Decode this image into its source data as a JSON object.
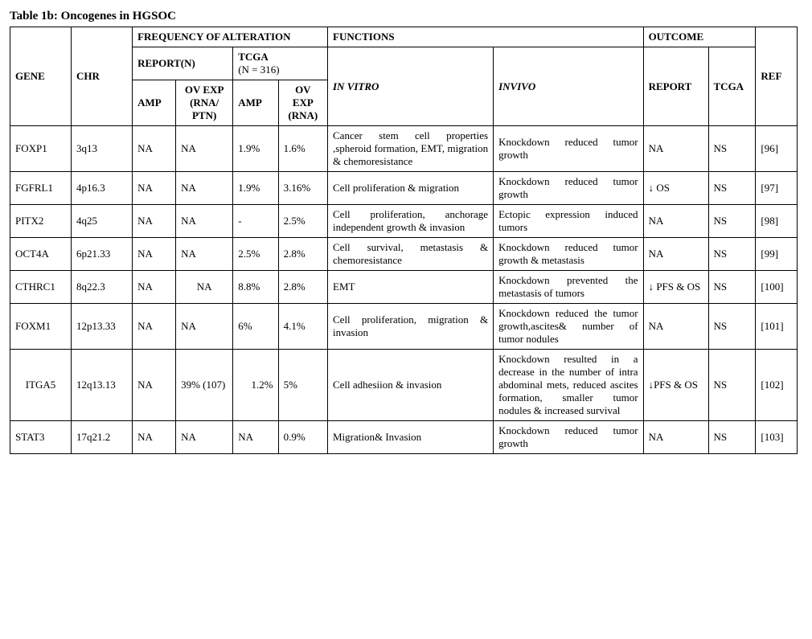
{
  "title": "Table 1b: Oncogenes in HGSOC",
  "hdr": {
    "gene": "GENE",
    "chr": "CHR",
    "freq": "FREQUENCY OF ALTERATION",
    "func": "FUNCTIONS",
    "outcome": "OUTCOME",
    "ref": "REF",
    "report": "REPORT(N)",
    "tcga": "TCGA",
    "tcga_n": "(N = 316)",
    "amp": "AMP",
    "ovexp_rna_ptn": "OV EXP (RNA/ PTN)",
    "ovexp_rna": "OV EXP (RNA)",
    "invitro": "IN VITRO",
    "invivo": "INVIVO",
    "o_report": "REPORT",
    "o_tcga": "TCGA"
  },
  "rows": [
    {
      "gene": "FOXP1",
      "chr": "3q13",
      "r_amp": "NA",
      "r_ov": "NA",
      "t_amp": "1.9%",
      "t_ov": "1.6%",
      "vitro": "Cancer stem cell properties ,spheroid formation, EMT, migration & chemoresistance",
      "vivo": "Knockdown reduced tumor growth",
      "o_rep": "NA",
      "o_tcga": "NS",
      "ref": "[96]"
    },
    {
      "gene": "FGFRL1",
      "chr": "4p16.3",
      "r_amp": "NA",
      "r_ov": "NA",
      "t_amp": "1.9%",
      "t_ov": "3.16%",
      "vitro": "Cell proliferation & migration",
      "vivo": "Knockdown reduced tumor growth",
      "o_rep": "↓ OS",
      "o_tcga": "NS",
      "ref": "[97]"
    },
    {
      "gene": "PITX2",
      "chr": "4q25",
      "r_amp": "NA",
      "r_ov": "NA",
      "t_amp": "-",
      "t_ov": "2.5%",
      "vitro": "Cell proliferation, anchorage independent growth & invasion",
      "vivo": "Ectopic expression induced tumors",
      "o_rep": "NA",
      "o_tcga": "NS",
      "ref": "[98]"
    },
    {
      "gene": "OCT4A",
      "chr": "6p21.33",
      "r_amp": "NA",
      "r_ov": "NA",
      "t_amp": "2.5%",
      "t_ov": "2.8%",
      "vitro": "Cell survival, metastasis & chemoresistance",
      "vivo": "Knockdown reduced tumor growth & metastasis",
      "o_rep": "NA",
      "o_tcga": "NS",
      "ref": "[99]"
    },
    {
      "gene": "CTHRC1",
      "chr": "8q22.3",
      "r_amp": "NA",
      "r_ov": "NA",
      "r_ov_center": true,
      "t_amp": "8.8%",
      "t_ov": "2.8%",
      "vitro": "EMT",
      "vivo": "Knockdown prevented the metastasis of tumors",
      "o_rep": "↓ PFS & OS",
      "o_tcga": "NS",
      "ref": "[100]"
    },
    {
      "gene": "FOXM1",
      "chr": "12p13.33",
      "r_amp": "NA",
      "r_ov": "NA",
      "t_amp": "6%",
      "t_ov": "4.1%",
      "vitro": "Cell proliferation, migration & invasion",
      "vivo": "Knockdown reduced the tumor growth,ascites& number of tumor nodules",
      "o_rep": "NA",
      "o_tcga": "NS",
      "ref": "[101]"
    },
    {
      "gene": "ITGA5",
      "gene_center": true,
      "chr": "12q13.13",
      "r_amp": "NA",
      "r_ov": "39% (107)",
      "t_amp": "1.2%",
      "t_amp_right": true,
      "t_ov": "5%",
      "vitro": "Cell adhesiion & invasion",
      "vivo": "Knockdown resulted in a decrease in the number of intra abdominal mets, reduced ascites formation, smaller tumor nodules & increased survival",
      "o_rep": "↓PFS & OS",
      "o_tcga": "NS",
      "ref": "[102]"
    },
    {
      "gene": "STAT3",
      "chr": "17q21.2",
      "r_amp": "NA",
      "r_ov": "NA",
      "t_amp": "NA",
      "t_ov": "0.9%",
      "vitro": "Migration& Invasion",
      "vivo": "Knockdown reduced tumor growth",
      "o_rep": "NA",
      "o_tcga": "NS",
      "ref": "[103]"
    }
  ]
}
